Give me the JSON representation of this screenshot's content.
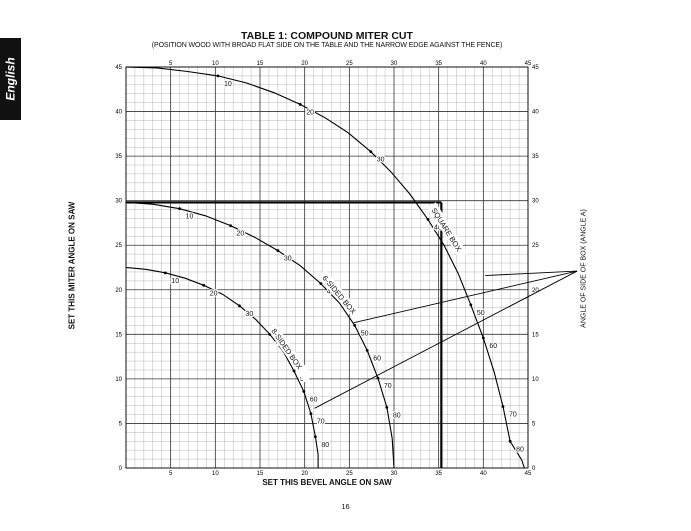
{
  "language_tab": "English",
  "page_number": "16",
  "chart_data": {
    "type": "line",
    "title": "TABLE 1: COMPOUND MITER CUT",
    "subtitle": "(POSITION WOOD WITH BROAD FLAT SIDE ON THE TABLE AND THE NARROW EDGE AGAINST THE FENCE)",
    "xlabel": "SET THIS BEVEL ANGLE ON SAW",
    "ylabel": "SET THIS MITER ANGLE ON SAW",
    "right_label": "ANGLE OF SIDE OF BOX (ANGLE A)",
    "xlim": [
      0,
      45
    ],
    "ylim": [
      0,
      45
    ],
    "x_ticks": [
      "5",
      "10",
      "15",
      "20",
      "25",
      "30",
      "35",
      "40",
      "45"
    ],
    "y_ticks": [
      "5",
      "10",
      "15",
      "20",
      "25",
      "30",
      "35",
      "40",
      "45"
    ],
    "origin_label": "0",
    "grid": true,
    "series": [
      {
        "name": "SQUARE BOX",
        "points": [
          [
            0,
            45
          ],
          [
            3.5,
            44.9
          ],
          [
            6.9,
            44.5
          ],
          [
            10.3,
            44.0
          ],
          [
            13.5,
            43.2
          ],
          [
            16.6,
            42.1
          ],
          [
            19.5,
            40.8
          ],
          [
            22.3,
            39.3
          ],
          [
            24.9,
            37.6
          ],
          [
            27.4,
            35.5
          ],
          [
            29.7,
            33.2
          ],
          [
            31.8,
            30.7
          ],
          [
            33.8,
            27.9
          ],
          [
            35.6,
            25.0
          ],
          [
            37.2,
            21.8
          ],
          [
            38.6,
            18.3
          ],
          [
            40.0,
            14.6
          ],
          [
            41.2,
            10.8
          ],
          [
            42.2,
            6.9
          ],
          [
            43.0,
            3.0
          ],
          [
            44.3,
            0.9
          ],
          [
            44.6,
            0
          ]
        ],
        "labels": [
          {
            "text": "10",
            "x": 10.3,
            "y": 44.0
          },
          {
            "text": "20",
            "x": 19.5,
            "y": 40.8
          },
          {
            "text": "30",
            "x": 27.4,
            "y": 35.5
          },
          {
            "text": "40",
            "x": 33.8,
            "y": 27.9
          },
          {
            "text": "50",
            "x": 38.6,
            "y": 18.3
          },
          {
            "text": "60",
            "x": 40.0,
            "y": 14.6
          },
          {
            "text": "70",
            "x": 42.2,
            "y": 6.9
          },
          {
            "text": "80",
            "x": 43.0,
            "y": 3.0
          }
        ]
      },
      {
        "name": "6-SIDED BOX",
        "points": [
          [
            0,
            29.8
          ],
          [
            3.0,
            29.6
          ],
          [
            6.0,
            29.1
          ],
          [
            8.9,
            28.3
          ],
          [
            11.7,
            27.2
          ],
          [
            14.4,
            25.9
          ],
          [
            17.0,
            24.4
          ],
          [
            19.5,
            22.7
          ],
          [
            21.8,
            20.7
          ],
          [
            23.9,
            18.5
          ],
          [
            25.6,
            16.0
          ],
          [
            27.0,
            13.2
          ],
          [
            28.2,
            10.1
          ],
          [
            29.2,
            6.8
          ],
          [
            29.8,
            3.3
          ],
          [
            30.0,
            0
          ]
        ],
        "labels": [
          {
            "text": "10",
            "x": 6.0,
            "y": 29.1
          },
          {
            "text": "20",
            "x": 11.7,
            "y": 27.2
          },
          {
            "text": "30",
            "x": 17.0,
            "y": 24.4
          },
          {
            "text": "40",
            "x": 21.8,
            "y": 20.7
          },
          {
            "text": "50",
            "x": 25.6,
            "y": 16.0
          },
          {
            "text": "60",
            "x": 27.0,
            "y": 13.2
          },
          {
            "text": "70",
            "x": 28.2,
            "y": 10.1
          },
          {
            "text": "80",
            "x": 29.2,
            "y": 6.8
          }
        ]
      },
      {
        "name": "8-SIDED BOX",
        "points": [
          [
            0,
            22.5
          ],
          [
            2.2,
            22.3
          ],
          [
            4.4,
            21.9
          ],
          [
            6.6,
            21.3
          ],
          [
            8.7,
            20.5
          ],
          [
            10.8,
            19.5
          ],
          [
            12.7,
            18.2
          ],
          [
            14.5,
            16.7
          ],
          [
            16.1,
            15.0
          ],
          [
            17.6,
            13.1
          ],
          [
            18.8,
            10.9
          ],
          [
            19.9,
            8.6
          ],
          [
            20.7,
            6.1
          ],
          [
            21.2,
            3.5
          ],
          [
            21.5,
            1.5
          ],
          [
            21.5,
            0
          ]
        ],
        "labels": [
          {
            "text": "10",
            "x": 4.4,
            "y": 21.9
          },
          {
            "text": "20",
            "x": 8.7,
            "y": 20.5
          },
          {
            "text": "30",
            "x": 12.7,
            "y": 18.2
          },
          {
            "text": "40",
            "x": 16.1,
            "y": 15.0
          },
          {
            "text": "50",
            "x": 18.8,
            "y": 10.9
          },
          {
            "text": "60",
            "x": 19.9,
            "y": 8.6
          },
          {
            "text": "70",
            "x": 20.7,
            "y": 6.1
          },
          {
            "text": "80",
            "x": 21.2,
            "y": 3.5
          }
        ]
      }
    ],
    "example_line": {
      "x": 35.3,
      "y": 29.8
    },
    "pointer_target": {
      "x": 50.5,
      "y": 22.1
    },
    "pointer_sources": [
      {
        "x": 40.2,
        "y": 21.6
      },
      {
        "x": 25.5,
        "y": 16.3
      },
      {
        "x": 21.1,
        "y": 6.7
      }
    ]
  }
}
